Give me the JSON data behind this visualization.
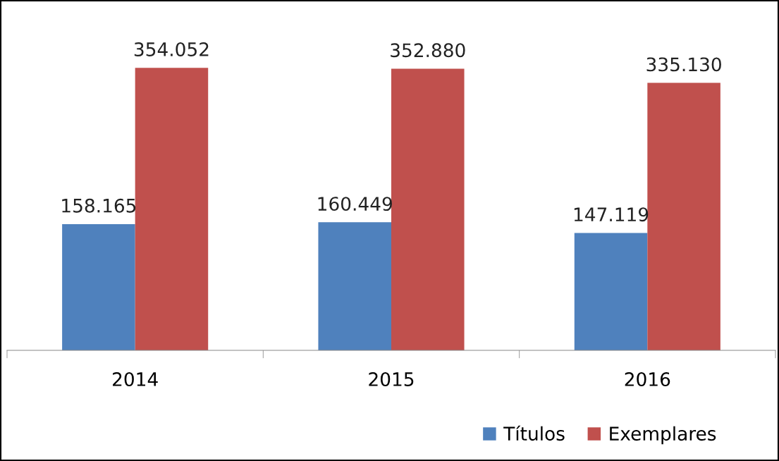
{
  "chart_data": {
    "type": "bar",
    "categories": [
      "2014",
      "2015",
      "2016"
    ],
    "series": [
      {
        "name": "Títulos",
        "color": "#4f81bd",
        "values": [
          158165,
          160449,
          147119
        ],
        "value_labels": [
          "158.165",
          "160.449",
          "147.119"
        ]
      },
      {
        "name": "Exemplares",
        "color": "#c0504d",
        "values": [
          354052,
          352880,
          335130
        ],
        "value_labels": [
          "354.052",
          "352.880",
          "335.130"
        ]
      }
    ],
    "grid": false,
    "legend": "bottom"
  }
}
